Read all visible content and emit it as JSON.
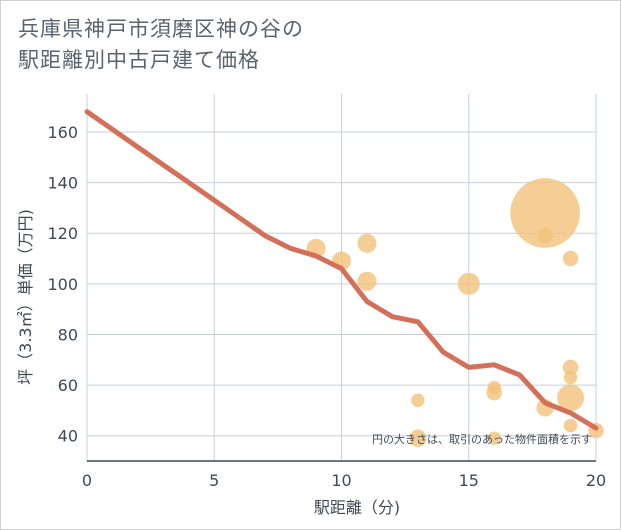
{
  "chart_data": {
    "type": "scatter",
    "title": [
      "兵庫県神戸市須磨区神の谷の",
      "駅距離別中古戸建て価格"
    ],
    "xlabel": "駅距離（分)",
    "ylabel": "坪（3.3㎡）単価（万円)",
    "xlim": [
      0,
      20
    ],
    "ylim": [
      30,
      175
    ],
    "xticks": [
      0,
      5,
      10,
      15,
      20
    ],
    "yticks": [
      40,
      60,
      80,
      100,
      120,
      140,
      160
    ],
    "grid": true,
    "annotation": "円の大きさは、取引のあった物件面積を示す",
    "colors": {
      "line": "#d4705a",
      "bubble": "#f2c27a",
      "grid": "#c5d0dc",
      "axis": "#3f4a57"
    },
    "line": {
      "x": [
        0,
        1,
        2,
        3,
        4,
        5,
        6,
        7,
        8,
        9,
        10,
        11,
        12,
        13,
        14,
        15,
        16,
        17,
        18,
        19,
        20
      ],
      "y": [
        168,
        161,
        154,
        147,
        140,
        133,
        126,
        119,
        114,
        111,
        106,
        93,
        87,
        85,
        73,
        67,
        68,
        64,
        53,
        49,
        43
      ]
    },
    "points": [
      {
        "x": 9,
        "y": 114,
        "size": 3
      },
      {
        "x": 10,
        "y": 109,
        "size": 3
      },
      {
        "x": 11,
        "y": 116,
        "size": 3
      },
      {
        "x": 11,
        "y": 101,
        "size": 3
      },
      {
        "x": 13,
        "y": 54,
        "size": 1.5
      },
      {
        "x": 13,
        "y": 39,
        "size": 2.5
      },
      {
        "x": 15,
        "y": 100,
        "size": 4
      },
      {
        "x": 16,
        "y": 59,
        "size": 1.5
      },
      {
        "x": 16,
        "y": 57,
        "size": 2
      },
      {
        "x": 16,
        "y": 39,
        "size": 1.5
      },
      {
        "x": 18,
        "y": 128,
        "size": 40
      },
      {
        "x": 18,
        "y": 119,
        "size": 2
      },
      {
        "x": 18,
        "y": 51,
        "size": 2.5
      },
      {
        "x": 19,
        "y": 110,
        "size": 2
      },
      {
        "x": 19,
        "y": 67,
        "size": 2
      },
      {
        "x": 19,
        "y": 63,
        "size": 1.5
      },
      {
        "x": 19,
        "y": 55,
        "size": 6
      },
      {
        "x": 19,
        "y": 44,
        "size": 1.5
      },
      {
        "x": 20,
        "y": 42,
        "size": 2
      }
    ]
  }
}
